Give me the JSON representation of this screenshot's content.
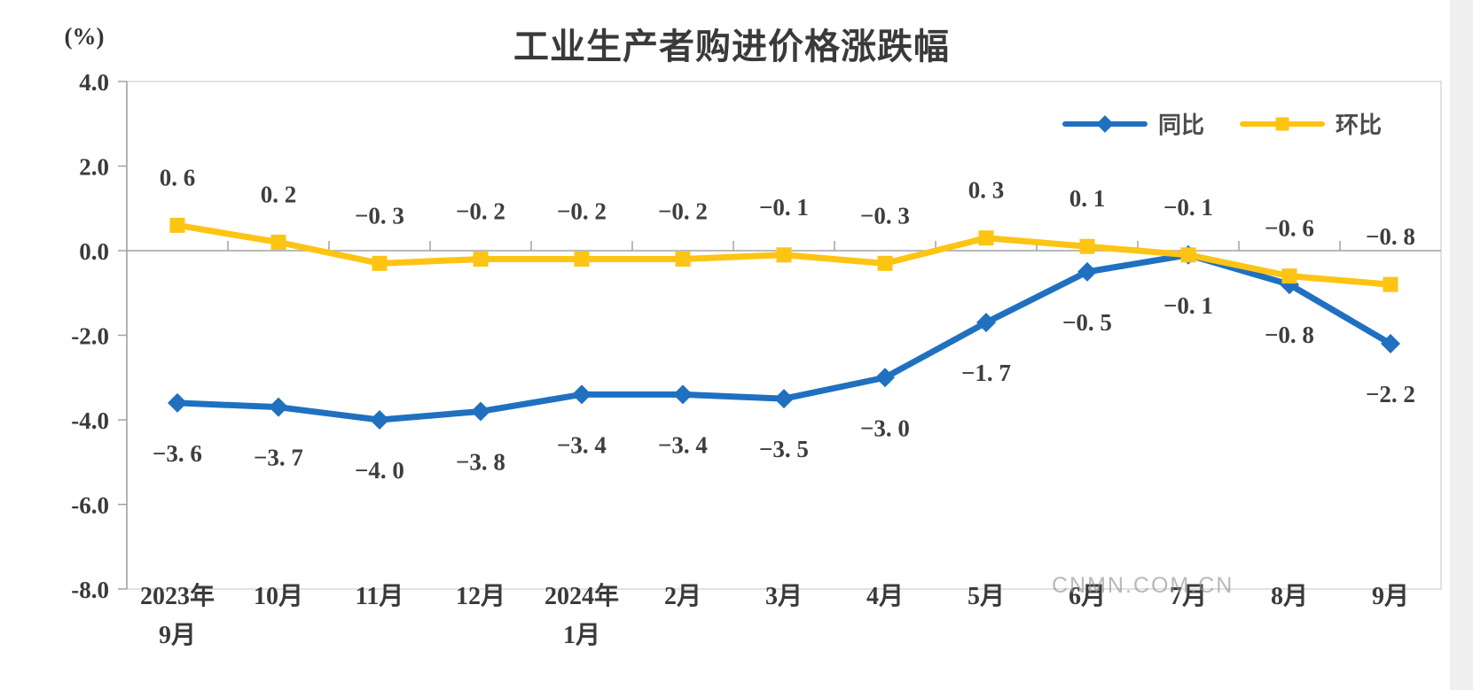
{
  "title": "工业生产者购进价格涨跌幅",
  "y_axis_unit": "(%)",
  "watermark": "CNMN.COM.CN",
  "colors": {
    "series_yoy": "#2070c0",
    "series_mom": "#fdc413",
    "axis_line": "#a2a2a2",
    "plot_border": "#d8d8d8",
    "tick_text": "#3a3a3a",
    "data_label_text": "#3e3e3e",
    "watermark_text": "#8f8f8f"
  },
  "legend": {
    "items": [
      {
        "label": "同比",
        "marker": "diamond"
      },
      {
        "label": "环比",
        "marker": "square"
      }
    ]
  },
  "chart_data": {
    "type": "line",
    "title": "工业生产者购进价格涨跌幅",
    "xlabel": "",
    "ylabel": "(%)",
    "ylim": [
      -8.0,
      4.0
    ],
    "ytick_interval": 2.0,
    "ytick_values": [
      4.0,
      2.0,
      0.0,
      -2.0,
      -4.0,
      -6.0,
      -8.0
    ],
    "ytick_labels": [
      "4.0",
      "2.0",
      "0.0",
      "-2.0",
      "-4.0",
      "-6.0",
      "-8.0"
    ],
    "grid": false,
    "legend_position": "top-right-inside",
    "categories": [
      "2023年9月",
      "10月",
      "11月",
      "12月",
      "2024年1月",
      "2月",
      "3月",
      "4月",
      "5月",
      "6月",
      "7月",
      "8月",
      "9月"
    ],
    "category_axis_lines": [
      [
        "2023年",
        "9月"
      ],
      [
        "10月"
      ],
      [
        "11月"
      ],
      [
        "12月"
      ],
      [
        "2024年",
        "1月"
      ],
      [
        "2月"
      ],
      [
        "3月"
      ],
      [
        "4月"
      ],
      [
        "5月"
      ],
      [
        "6月"
      ],
      [
        "7月"
      ],
      [
        "8月"
      ],
      [
        "9月"
      ]
    ],
    "series": [
      {
        "name": "同比",
        "marker": "diamond",
        "color": "#2070c0",
        "label_position": "below",
        "values": [
          -3.6,
          -3.7,
          -4.0,
          -3.8,
          -3.4,
          -3.4,
          -3.5,
          -3.0,
          -1.7,
          -0.5,
          -0.1,
          -0.8,
          -2.2
        ],
        "labels": [
          "−3. 6",
          "−3. 7",
          "−4. 0",
          "−3. 8",
          "−3. 4",
          "−3. 4",
          "−3. 5",
          "−3. 0",
          "−1. 7",
          "−0. 5",
          "−0. 1",
          "−0. 8",
          "−2. 2"
        ]
      },
      {
        "name": "环比",
        "marker": "square",
        "color": "#fdc413",
        "label_position": "above",
        "values": [
          0.6,
          0.2,
          -0.3,
          -0.2,
          -0.2,
          -0.2,
          -0.1,
          -0.3,
          0.3,
          0.1,
          -0.1,
          -0.6,
          -0.8
        ],
        "labels": [
          "0. 6",
          "0. 2",
          "−0. 3",
          "−0. 2",
          "−0. 2",
          "−0. 2",
          "−0. 1",
          "−0. 3",
          "0. 3",
          "0. 1",
          "−0. 1",
          "−0. 6",
          "−0. 8"
        ]
      }
    ]
  }
}
